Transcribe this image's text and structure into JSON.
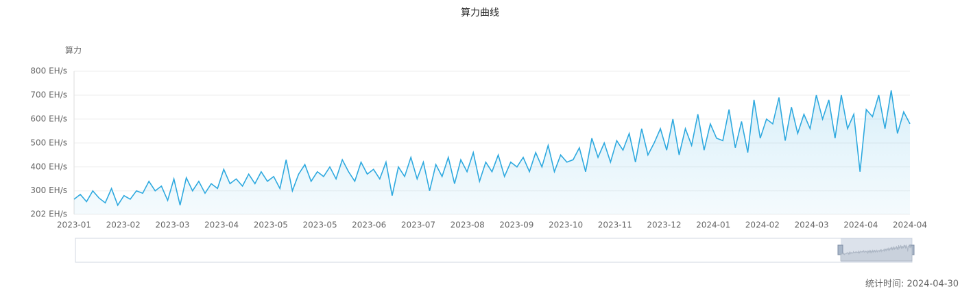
{
  "chart_data": {
    "type": "line",
    "title": "算力曲线",
    "y_axis_label": "算力",
    "footer": "统计时间: 2024-04-30",
    "x_tick_labels": [
      "2023-01",
      "2023-02",
      "2023-03",
      "2023-04",
      "2023-05",
      "2023-05",
      "2023-06",
      "2023-07",
      "2023-08",
      "2023-09",
      "2023-10",
      "2023-11",
      "2023-12",
      "2024-01",
      "2024-02",
      "2024-03",
      "2024-04",
      "2024-04"
    ],
    "ylim": [
      202,
      800
    ],
    "yticks": [
      {
        "value": 202,
        "label": "202 EH/s"
      },
      {
        "value": 300,
        "label": "300 EH/s"
      },
      {
        "value": 400,
        "label": "400 EH/s"
      },
      {
        "value": 500,
        "label": "500 EH/s"
      },
      {
        "value": 600,
        "label": "600 EH/s"
      },
      {
        "value": 700,
        "label": "700 EH/s"
      },
      {
        "value": 800,
        "label": "800 EH/s"
      }
    ],
    "grid": true,
    "color": "#2ea9df",
    "values": [
      265,
      285,
      255,
      300,
      270,
      250,
      310,
      240,
      280,
      265,
      300,
      290,
      340,
      300,
      320,
      260,
      350,
      240,
      355,
      300,
      340,
      290,
      330,
      310,
      390,
      330,
      350,
      320,
      370,
      330,
      380,
      340,
      360,
      310,
      430,
      300,
      370,
      410,
      340,
      380,
      360,
      400,
      350,
      430,
      380,
      340,
      420,
      370,
      390,
      350,
      420,
      280,
      400,
      360,
      440,
      350,
      420,
      300,
      410,
      360,
      440,
      330,
      430,
      380,
      460,
      340,
      420,
      380,
      450,
      360,
      420,
      400,
      440,
      380,
      460,
      400,
      490,
      380,
      450,
      420,
      430,
      480,
      380,
      520,
      440,
      500,
      420,
      510,
      470,
      540,
      420,
      560,
      450,
      500,
      560,
      470,
      600,
      450,
      560,
      490,
      620,
      470,
      580,
      520,
      510,
      640,
      480,
      590,
      460,
      680,
      520,
      600,
      580,
      690,
      510,
      650,
      540,
      620,
      560,
      700,
      600,
      680,
      520,
      700,
      560,
      620,
      380,
      640,
      610,
      700,
      560,
      720,
      540,
      630,
      580
    ]
  }
}
